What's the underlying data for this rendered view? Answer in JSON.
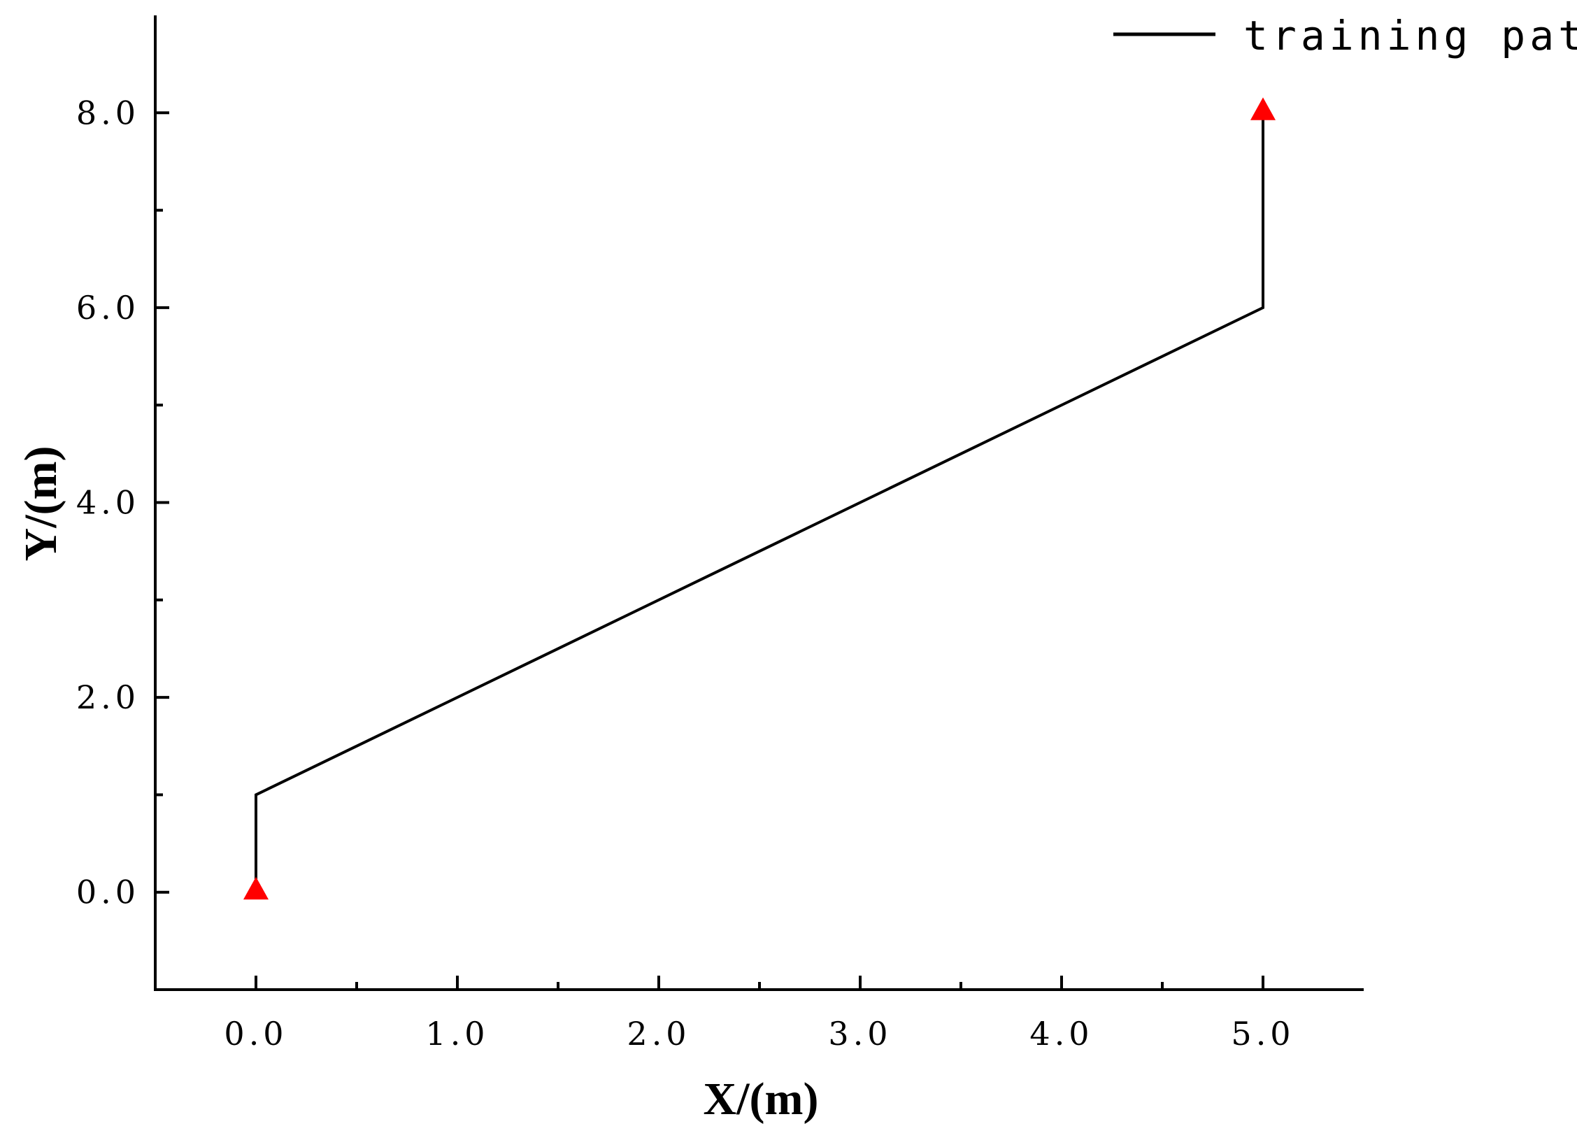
{
  "chart_data": {
    "type": "line",
    "title": "",
    "xlabel": "X/(m)",
    "ylabel": "Y/(m)",
    "xlim": [
      -0.5,
      5.5
    ],
    "ylim": [
      -1.0,
      9.0
    ],
    "x_ticks": [
      0,
      1,
      2,
      3,
      4,
      5
    ],
    "x_minor_ticks": [
      0.5,
      1.5,
      2.5,
      3.5,
      4.5
    ],
    "x_tick_labels": [
      "0.0",
      "1.0",
      "2.0",
      "3.0",
      "4.0",
      "5.0"
    ],
    "y_ticks": [
      0,
      2,
      4,
      6,
      8
    ],
    "y_minor_ticks": [
      1,
      3,
      5,
      7
    ],
    "y_tick_labels": [
      "0.0",
      "2.0",
      "4.0",
      "6.0",
      "8.0"
    ],
    "grid": false,
    "legend_position": "top-right",
    "series": [
      {
        "name": "training path",
        "color": "#000000",
        "points": [
          {
            "x": 0,
            "y": 0
          },
          {
            "x": 0,
            "y": 1
          },
          {
            "x": 5,
            "y": 6
          },
          {
            "x": 5,
            "y": 8
          }
        ]
      }
    ],
    "markers": {
      "shape": "triangle",
      "color": "#ff0000",
      "points": [
        {
          "x": 0,
          "y": 0
        },
        {
          "x": 5,
          "y": 8
        }
      ]
    }
  }
}
